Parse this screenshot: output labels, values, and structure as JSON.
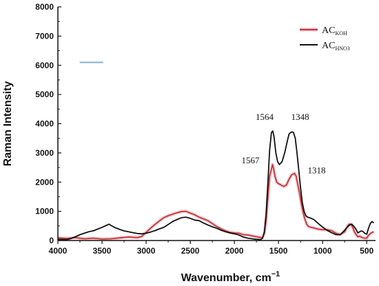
{
  "chart_data": {
    "type": "line",
    "title": "",
    "xlabel": "Wavenumber, cm",
    "xlabel_superscript": "−1",
    "ylabel": "Raman Intensity",
    "xlim": [
      4000,
      400
    ],
    "ylim": [
      0,
      8000
    ],
    "x_ticks": [
      4000,
      3500,
      3000,
      2500,
      2000,
      1500,
      1000,
      500
    ],
    "y_ticks": [
      0,
      1000,
      2000,
      3000,
      4000,
      5000,
      6000,
      7000,
      8000
    ],
    "grid": false,
    "legend_position": "top-right",
    "series": [
      {
        "name": "AC",
        "subscript": "KOH",
        "color": "#c0392b",
        "points": [
          [
            4000,
            90
          ],
          [
            3900,
            70
          ],
          [
            3800,
            100
          ],
          [
            3700,
            60
          ],
          [
            3600,
            80
          ],
          [
            3500,
            50
          ],
          [
            3400,
            60
          ],
          [
            3300,
            90
          ],
          [
            3200,
            120
          ],
          [
            3100,
            100
          ],
          [
            3050,
            140
          ],
          [
            3000,
            280
          ],
          [
            2950,
            420
          ],
          [
            2900,
            550
          ],
          [
            2850,
            670
          ],
          [
            2800,
            780
          ],
          [
            2750,
            850
          ],
          [
            2700,
            900
          ],
          [
            2650,
            950
          ],
          [
            2600,
            990
          ],
          [
            2550,
            1000
          ],
          [
            2500,
            940
          ],
          [
            2450,
            880
          ],
          [
            2400,
            800
          ],
          [
            2350,
            740
          ],
          [
            2300,
            680
          ],
          [
            2250,
            580
          ],
          [
            2200,
            480
          ],
          [
            2150,
            400
          ],
          [
            2100,
            330
          ],
          [
            2050,
            280
          ],
          [
            2000,
            260
          ],
          [
            1950,
            250
          ],
          [
            1900,
            200
          ],
          [
            1850,
            190
          ],
          [
            1800,
            160
          ],
          [
            1750,
            130
          ],
          [
            1700,
            100
          ],
          [
            1680,
            110
          ],
          [
            1660,
            250
          ],
          [
            1640,
            700
          ],
          [
            1620,
            1500
          ],
          [
            1600,
            2200
          ],
          [
            1580,
            2450
          ],
          [
            1567,
            2600
          ],
          [
            1555,
            2450
          ],
          [
            1540,
            2200
          ],
          [
            1520,
            2000
          ],
          [
            1500,
            1950
          ],
          [
            1470,
            1900
          ],
          [
            1440,
            1850
          ],
          [
            1410,
            1900
          ],
          [
            1380,
            2100
          ],
          [
            1350,
            2250
          ],
          [
            1318,
            2300
          ],
          [
            1300,
            2200
          ],
          [
            1280,
            1900
          ],
          [
            1260,
            1600
          ],
          [
            1240,
            1250
          ],
          [
            1220,
            950
          ],
          [
            1200,
            720
          ],
          [
            1180,
            560
          ],
          [
            1160,
            480
          ],
          [
            1130,
            450
          ],
          [
            1100,
            430
          ],
          [
            1050,
            390
          ],
          [
            1000,
            370
          ],
          [
            950,
            370
          ],
          [
            900,
            340
          ],
          [
            850,
            250
          ],
          [
            800,
            200
          ],
          [
            750,
            300
          ],
          [
            720,
            480
          ],
          [
            700,
            560
          ],
          [
            680,
            560
          ],
          [
            660,
            460
          ],
          [
            640,
            300
          ],
          [
            620,
            200
          ],
          [
            600,
            130
          ],
          [
            580,
            150
          ],
          [
            560,
            110
          ],
          [
            540,
            90
          ],
          [
            520,
            80
          ],
          [
            500,
            80
          ],
          [
            480,
            180
          ],
          [
            450,
            260
          ],
          [
            420,
            300
          ]
        ]
      },
      {
        "name": "AC",
        "subscript": "HNO3",
        "color": "#111111",
        "points": [
          [
            4000,
            40
          ],
          [
            3900,
            30
          ],
          [
            3850,
            70
          ],
          [
            3800,
            130
          ],
          [
            3750,
            200
          ],
          [
            3700,
            250
          ],
          [
            3650,
            300
          ],
          [
            3600,
            330
          ],
          [
            3550,
            390
          ],
          [
            3500,
            450
          ],
          [
            3450,
            520
          ],
          [
            3420,
            560
          ],
          [
            3400,
            520
          ],
          [
            3350,
            440
          ],
          [
            3300,
            380
          ],
          [
            3250,
            330
          ],
          [
            3200,
            300
          ],
          [
            3150,
            270
          ],
          [
            3100,
            240
          ],
          [
            3050,
            230
          ],
          [
            3000,
            250
          ],
          [
            2950,
            290
          ],
          [
            2900,
            340
          ],
          [
            2850,
            400
          ],
          [
            2800,
            450
          ],
          [
            2750,
            550
          ],
          [
            2700,
            650
          ],
          [
            2650,
            720
          ],
          [
            2600,
            780
          ],
          [
            2550,
            800
          ],
          [
            2500,
            760
          ],
          [
            2450,
            700
          ],
          [
            2400,
            680
          ],
          [
            2350,
            600
          ],
          [
            2300,
            530
          ],
          [
            2250,
            470
          ],
          [
            2200,
            420
          ],
          [
            2150,
            350
          ],
          [
            2100,
            300
          ],
          [
            2050,
            260
          ],
          [
            2000,
            230
          ],
          [
            1950,
            190
          ],
          [
            1900,
            120
          ],
          [
            1850,
            80
          ],
          [
            1800,
            60
          ],
          [
            1750,
            40
          ],
          [
            1700,
            30
          ],
          [
            1680,
            80
          ],
          [
            1660,
            300
          ],
          [
            1640,
            900
          ],
          [
            1620,
            2000
          ],
          [
            1600,
            3100
          ],
          [
            1580,
            3700
          ],
          [
            1564,
            3750
          ],
          [
            1550,
            3550
          ],
          [
            1530,
            3000
          ],
          [
            1510,
            2700
          ],
          [
            1490,
            2600
          ],
          [
            1460,
            2700
          ],
          [
            1430,
            3000
          ],
          [
            1400,
            3400
          ],
          [
            1380,
            3650
          ],
          [
            1360,
            3700
          ],
          [
            1348,
            3720
          ],
          [
            1330,
            3700
          ],
          [
            1310,
            3500
          ],
          [
            1290,
            3000
          ],
          [
            1270,
            2400
          ],
          [
            1250,
            1800
          ],
          [
            1230,
            1300
          ],
          [
            1210,
            1000
          ],
          [
            1190,
            850
          ],
          [
            1170,
            800
          ],
          [
            1150,
            780
          ],
          [
            1130,
            760
          ],
          [
            1100,
            720
          ],
          [
            1070,
            640
          ],
          [
            1040,
            560
          ],
          [
            1000,
            460
          ],
          [
            950,
            350
          ],
          [
            900,
            270
          ],
          [
            850,
            200
          ],
          [
            800,
            200
          ],
          [
            760,
            320
          ],
          [
            730,
            420
          ],
          [
            700,
            520
          ],
          [
            670,
            560
          ],
          [
            650,
            500
          ],
          [
            620,
            380
          ],
          [
            600,
            260
          ],
          [
            580,
            300
          ],
          [
            560,
            330
          ],
          [
            540,
            300
          ],
          [
            520,
            240
          ],
          [
            500,
            220
          ],
          [
            480,
            420
          ],
          [
            460,
            580
          ],
          [
            440,
            650
          ],
          [
            420,
            600
          ]
        ]
      }
    ],
    "annotations": [
      {
        "text": "1564",
        "x": 1564,
        "y": 3800,
        "series": 1
      },
      {
        "text": "1348",
        "x": 1348,
        "y": 3800,
        "series": 1
      },
      {
        "text": "1567",
        "x": 1567,
        "y": 2600,
        "series": 0
      },
      {
        "text": "1318",
        "x": 1318,
        "y": 2300,
        "series": 0
      }
    ],
    "marker_mark": {
      "x": 3620,
      "y": 6100,
      "color": "#7fb0d9"
    }
  }
}
